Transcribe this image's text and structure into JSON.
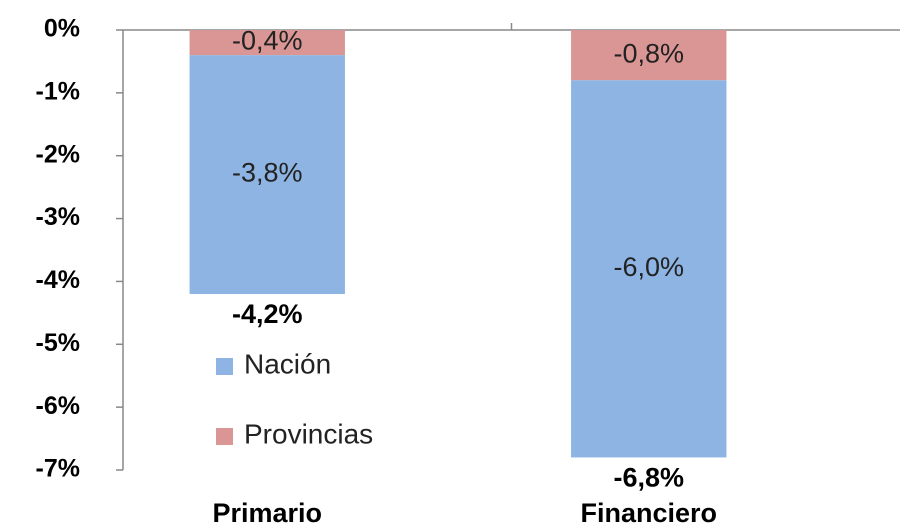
{
  "chart_data": {
    "type": "stacked_bar",
    "categories": [
      "Primario",
      "Financiero"
    ],
    "series": [
      {
        "name": "Nación",
        "color": "#8eb4e3",
        "values": [
          -3.8,
          -6.0
        ],
        "value_labels": [
          "-3,8%",
          "-6,0%"
        ]
      },
      {
        "name": "Provincias",
        "color": "#d99694",
        "values": [
          -0.4,
          -0.8
        ],
        "value_labels": [
          "-0,4%",
          "-0,8%"
        ]
      }
    ],
    "totals": [
      -4.2,
      -6.8
    ],
    "total_labels": [
      "-4,2%",
      "-6,8%"
    ],
    "ylim": [
      0,
      -7
    ],
    "yticks": [
      {
        "value": 0,
        "label": "0%"
      },
      {
        "value": -1,
        "label": "-1%"
      },
      {
        "value": -2,
        "label": "-2%"
      },
      {
        "value": -3,
        "label": "-3%"
      },
      {
        "value": -4,
        "label": "-4%"
      },
      {
        "value": -5,
        "label": "-5%"
      },
      {
        "value": -6,
        "label": "-6%"
      },
      {
        "value": -7,
        "label": "-7%"
      }
    ],
    "legend": "left"
  }
}
